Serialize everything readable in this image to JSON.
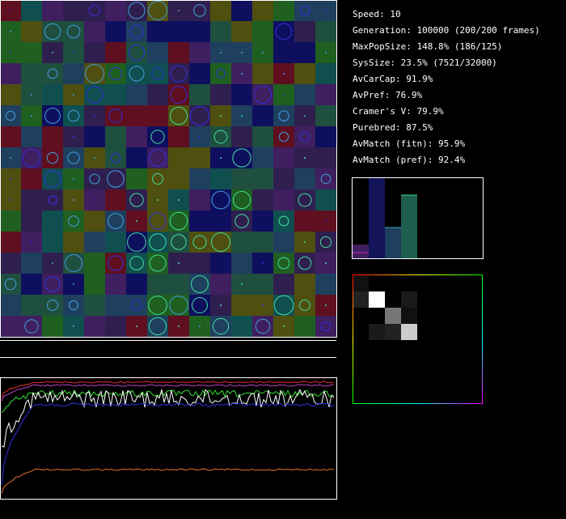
{
  "stats": [
    "Speed: 10",
    "Generation: 100000 (200/200 frames)",
    "MaxPopSize: 148.8% (186/125)",
    "SysSize: 23.5% (7521/32000)",
    "AvCarCap: 91.9%",
    "AvPref: 76.9%",
    "Cramer's V: 79.9%",
    "Purebred: 87.5%",
    "AvMatch (fitn): 95.9%",
    "AvMatch (pref): 92.4%"
  ]
}
